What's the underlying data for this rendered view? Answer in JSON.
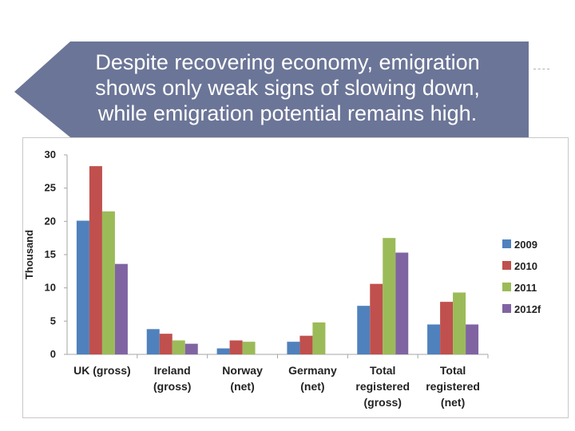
{
  "slide": {
    "title_lines": [
      "Despite recovering economy, emigration",
      "shows only weak signs of slowing down,",
      "while emigration potential remains high."
    ],
    "colors": {
      "banner": "#6b7597",
      "text": "#ffffff"
    }
  },
  "chart_data": {
    "type": "bar",
    "ylabel": "Thousand",
    "ylim": [
      0,
      30
    ],
    "yticks": [
      0,
      5,
      10,
      15,
      20,
      25,
      30
    ],
    "grid": false,
    "legend_position": "right",
    "categories": [
      [
        "UK (gross)"
      ],
      [
        "Ireland",
        "(gross)"
      ],
      [
        "Norway",
        "(net)"
      ],
      [
        "Germany",
        "(net)"
      ],
      [
        "Total",
        "registered",
        "(gross)"
      ],
      [
        "Total",
        "registered",
        "(net)"
      ]
    ],
    "series": [
      {
        "name": "2009",
        "color": "#4f81bd",
        "values": [
          20.1,
          3.8,
          0.9,
          1.9,
          7.3,
          4.5
        ]
      },
      {
        "name": "2010",
        "color": "#c0504d",
        "values": [
          28.3,
          3.1,
          2.1,
          2.8,
          10.6,
          7.9
        ]
      },
      {
        "name": "2011",
        "color": "#9bbb59",
        "values": [
          21.5,
          2.1,
          1.9,
          4.8,
          17.5,
          9.3
        ]
      },
      {
        "name": "2012f",
        "color": "#8064a2",
        "values": [
          13.6,
          1.6,
          null,
          null,
          15.3,
          4.5
        ]
      }
    ]
  }
}
